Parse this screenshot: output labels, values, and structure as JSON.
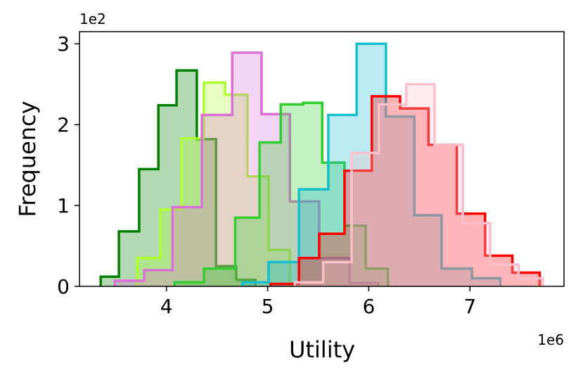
{
  "chart_data": {
    "type": "histogram",
    "x_label": "Utility",
    "y_label": "Frequency",
    "x_offset_label": "1e6",
    "y_offset_label": "1e2",
    "xlim": [
      3.14,
      7.93
    ],
    "ylim": [
      0,
      3.15
    ],
    "xticks": [
      4,
      5,
      6,
      7
    ],
    "yticks": [
      0,
      1,
      2,
      3
    ],
    "fill_alpha": 0.3,
    "series": [
      {
        "color": "#008000",
        "bins": [
          3.35,
          3.53,
          3.73,
          3.92,
          4.1,
          4.3,
          4.49,
          4.69,
          4.88
        ],
        "values": [
          0.12,
          0.68,
          1.45,
          2.24,
          2.67,
          1.82,
          0.25,
          0.08
        ]
      },
      {
        "color": "#adff2f",
        "bins": [
          3.71,
          3.94,
          4.15,
          4.37,
          4.58,
          4.8,
          5.01,
          5.22
        ],
        "values": [
          0.35,
          0.95,
          1.83,
          2.52,
          2.37,
          1.36,
          0.45
        ]
      },
      {
        "color": "#da70d6",
        "bins": [
          3.49,
          3.78,
          4.06,
          4.35,
          4.65,
          4.94,
          5.22,
          5.51,
          5.81,
          6.09
        ],
        "values": [
          0.07,
          0.2,
          0.98,
          2.12,
          2.89,
          2.13,
          1.05,
          0.35,
          0.04
        ]
      },
      {
        "color": "#32cd32",
        "bins": [
          4.08,
          4.37,
          4.68,
          4.92,
          5.13,
          5.35,
          5.54,
          5.76,
          5.97,
          6.19
        ],
        "values": [
          0.05,
          0.22,
          0.85,
          1.78,
          2.25,
          2.27,
          1.53,
          0.75,
          0.22
        ]
      },
      {
        "color": "#17becf",
        "bins": [
          4.75,
          5.01,
          5.31,
          5.6,
          5.88,
          6.17,
          6.45,
          6.72,
          7.02,
          7.3
        ],
        "values": [
          0.05,
          0.3,
          1.2,
          2.12,
          3.0,
          2.1,
          0.88,
          0.22,
          0.1
        ]
      },
      {
        "color": "#ff0000",
        "bins": [
          5.03,
          5.31,
          5.51,
          5.76,
          6.03,
          6.31,
          6.59,
          6.87,
          7.15,
          7.42,
          7.69
        ],
        "values": [
          0.03,
          0.35,
          0.65,
          1.43,
          2.35,
          2.2,
          1.75,
          0.9,
          0.38,
          0.17
        ]
      },
      {
        "color": "#ffc0cb",
        "bins": [
          5.27,
          5.55,
          5.83,
          6.1,
          6.37,
          6.65,
          6.93,
          7.2,
          7.48,
          7.72
        ],
        "values": [
          0.05,
          0.3,
          1.65,
          2.25,
          2.5,
          1.75,
          0.78,
          0.27,
          0.1
        ]
      }
    ]
  }
}
